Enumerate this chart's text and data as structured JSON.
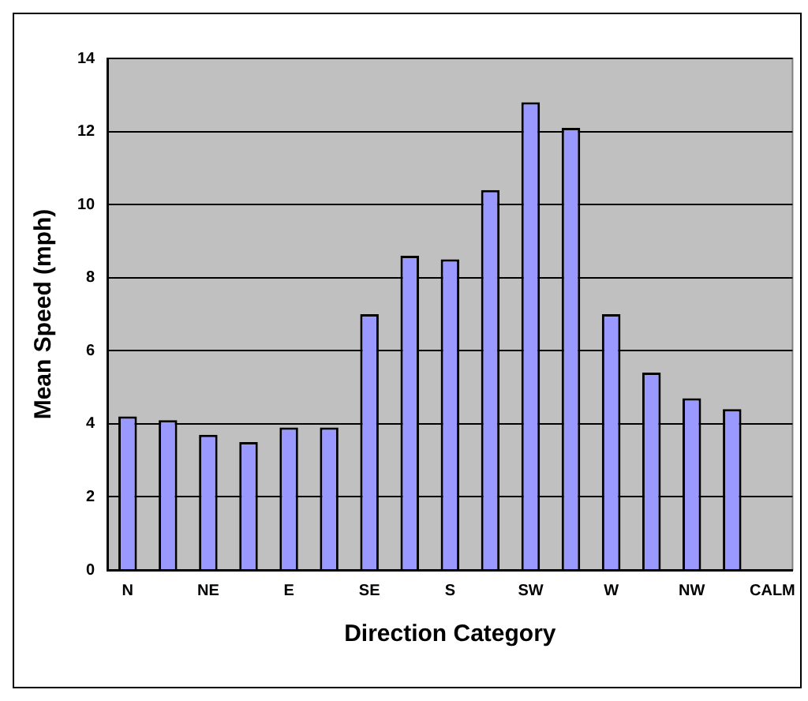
{
  "chart_data": {
    "type": "bar",
    "xlabel": "Direction Category",
    "ylabel": "Mean Speed (mph)",
    "categories": [
      "N",
      null,
      "NE",
      null,
      "E",
      null,
      "SE",
      null,
      "S",
      null,
      "SW",
      null,
      "W",
      null,
      "NW",
      null,
      "CALM"
    ],
    "values": [
      4.2,
      4.1,
      3.7,
      3.5,
      3.9,
      3.9,
      7.0,
      8.6,
      8.5,
      10.4,
      12.8,
      12.1,
      7.0,
      5.4,
      4.7,
      4.4,
      null
    ],
    "color": "#9999ff",
    "ylim": [
      0,
      14
    ],
    "yticks": [
      0,
      2,
      4,
      6,
      8,
      10,
      12,
      14
    ],
    "grid": "y",
    "legend": false
  }
}
